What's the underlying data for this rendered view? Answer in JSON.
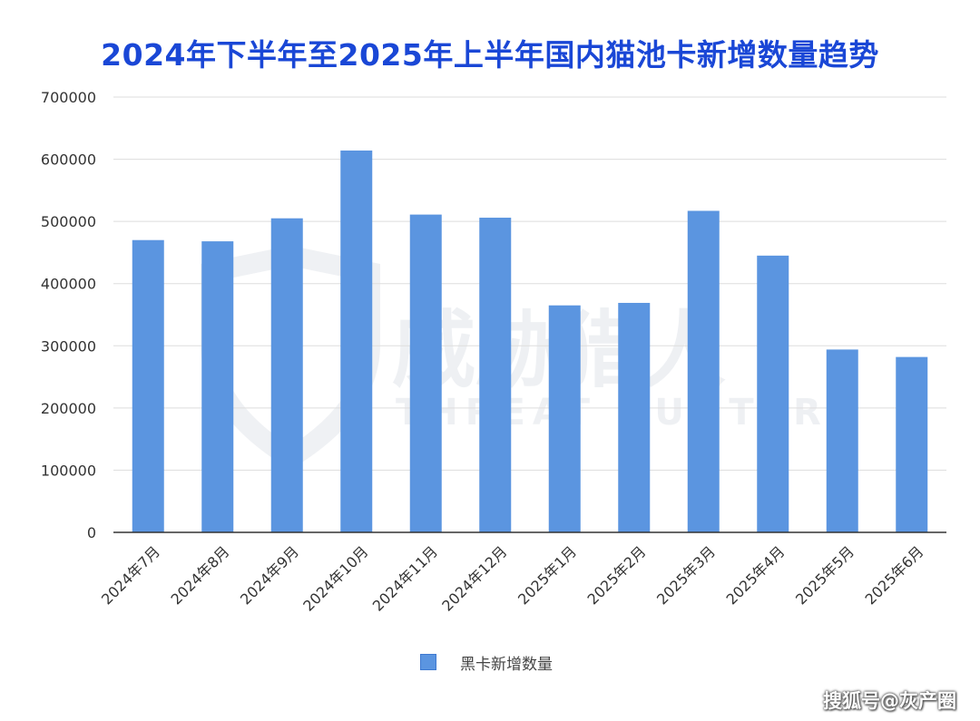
{
  "title": "2024年下半年至2025年上半年国内猫池卡新增数量趋势",
  "watermark": {
    "text_cn": "威胁猎人",
    "text_en": "THREAT HUNTER"
  },
  "source": "搜狐号@灰产圈",
  "colors": {
    "title": "#1a47d6",
    "bar": "#5b95e0",
    "grid": "#dddddd",
    "axis": "#333333"
  },
  "chart_data": {
    "type": "bar",
    "categories": [
      "2024年7月",
      "2024年8月",
      "2024年9月",
      "2024年10月",
      "2024年11月",
      "2024年12月",
      "2025年1月",
      "2025年2月",
      "2025年3月",
      "2025年4月",
      "2025年5月",
      "2025年6月"
    ],
    "series": [
      {
        "name": "黑卡新增数量",
        "values": [
          470000,
          468000,
          505000,
          614000,
          511000,
          506000,
          365000,
          369000,
          517000,
          445000,
          294000,
          282000
        ]
      }
    ],
    "ylim": [
      0,
      700000
    ],
    "yticks": [
      0,
      100000,
      200000,
      300000,
      400000,
      500000,
      600000,
      700000
    ],
    "xlabel": "",
    "ylabel": "",
    "grid": true,
    "legend": "bottom-center"
  }
}
